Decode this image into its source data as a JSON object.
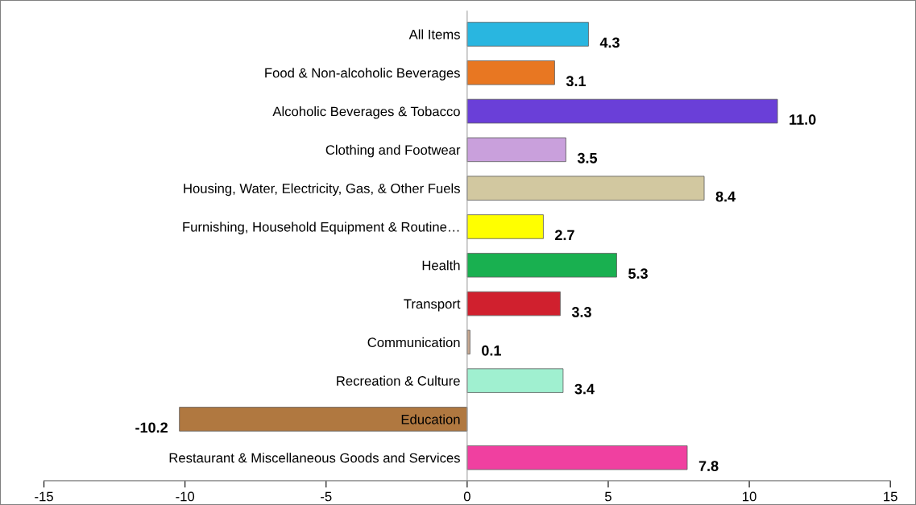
{
  "chart_data": {
    "type": "bar",
    "orientation": "horizontal",
    "categories": [
      "All Items",
      "Food & Non-alcoholic Beverages",
      "Alcoholic Beverages & Tobacco",
      "Clothing and Footwear",
      "Housing, Water, Electricity, Gas, & Other Fuels",
      "Furnishing, Household Equipment & Routine…",
      "Health",
      "Transport",
      "Communication",
      "Recreation & Culture",
      "Education",
      "Restaurant & Miscellaneous Goods and Services"
    ],
    "values": [
      4.3,
      3.1,
      11.0,
      3.5,
      8.4,
      2.7,
      5.3,
      3.3,
      0.1,
      3.4,
      -10.2,
      7.8
    ],
    "value_labels": [
      "4.3",
      "3.1",
      "11.0",
      "3.5",
      "8.4",
      "2.7",
      "5.3",
      "3.3",
      "0.1",
      "3.4",
      "-10.2",
      "7.8"
    ],
    "colors": [
      "#29b6e0",
      "#e87722",
      "#6a3fd8",
      "#c9a0dc",
      "#d2c8a0",
      "#ffff00",
      "#19b050",
      "#d0202e",
      "#c8a890",
      "#a0f0d0",
      "#b07840",
      "#f040a0"
    ],
    "xlim": [
      -15,
      15
    ],
    "xticks": [
      -15,
      -10,
      -5,
      0,
      5,
      10,
      15
    ],
    "grid": false
  }
}
